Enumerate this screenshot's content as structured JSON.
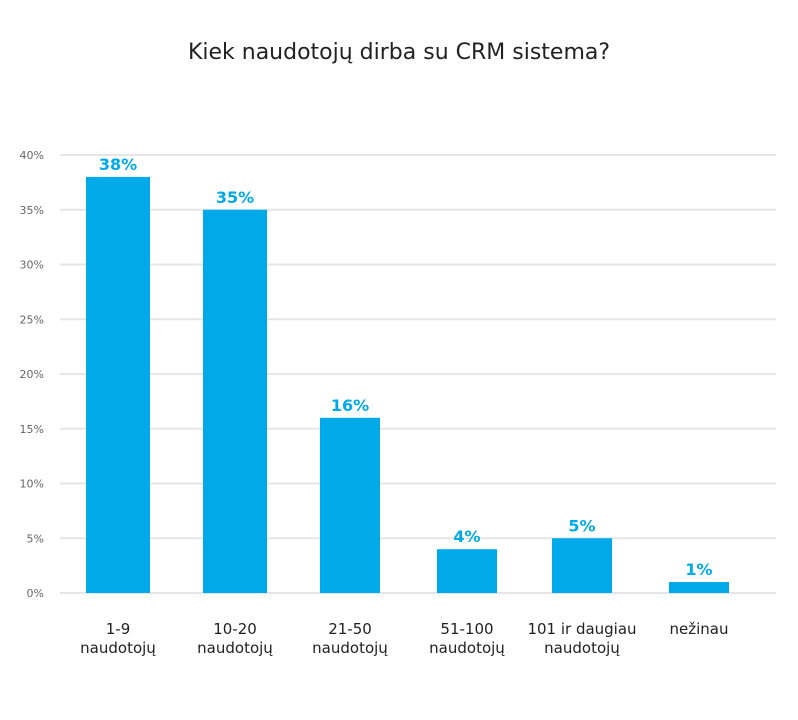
{
  "chart_data": {
    "type": "bar",
    "title": "Kiek naudotojų dirba su CRM sistema?",
    "xlabel": "",
    "ylabel": "",
    "ylim": [
      0,
      40
    ],
    "y_ticks": [
      "0%",
      "5%",
      "10%",
      "15%",
      "20%",
      "25%",
      "30%",
      "35%",
      "40%"
    ],
    "grid": true,
    "categories": [
      [
        "1-9",
        "naudotojų"
      ],
      [
        "10-20",
        "naudotojų"
      ],
      [
        "21-50",
        "naudotojų"
      ],
      [
        "51-100",
        "naudotojų"
      ],
      [
        "101 ir daugiau",
        "naudotojų"
      ],
      [
        "nežinau"
      ]
    ],
    "values": [
      38,
      35,
      16,
      4,
      5,
      1
    ],
    "data_labels": [
      "38%",
      "35%",
      "16%",
      "4%",
      "5%",
      "1%"
    ],
    "colors": {
      "bar": "#00A9E8",
      "label": "#00A9E8",
      "grid": "#e6e6e6"
    }
  }
}
